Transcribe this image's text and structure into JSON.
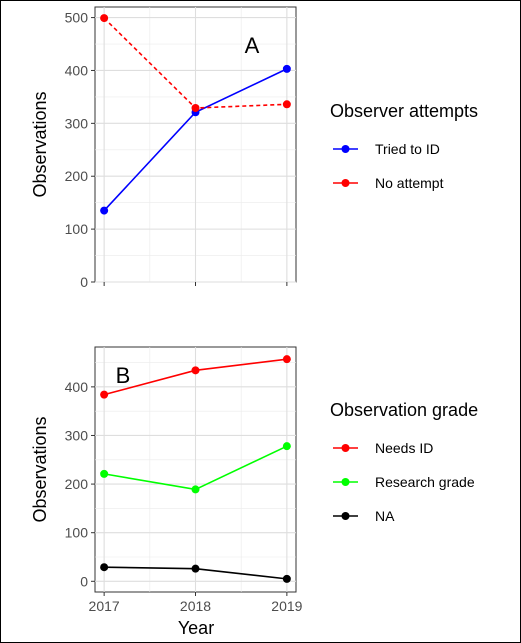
{
  "chart_data": [
    {
      "type": "line",
      "panel_label": "A",
      "x": [
        2017,
        2018,
        2019
      ],
      "ylabel": "Observations",
      "xlabel": "",
      "ylim": [
        0,
        520
      ],
      "yticks": [
        0,
        100,
        200,
        300,
        400,
        500
      ],
      "grid": true,
      "legend": {
        "title": "Observer attempts",
        "position": "right"
      },
      "series": [
        {
          "name": "Tried to ID",
          "values": [
            135,
            321,
            403
          ],
          "color": "#0000ff",
          "linestyle": "solid"
        },
        {
          "name": "No attempt",
          "values": [
            499,
            329,
            336
          ],
          "color": "#ff0000",
          "linestyle": "dashed"
        }
      ]
    },
    {
      "type": "line",
      "panel_label": "B",
      "x": [
        2017,
        2018,
        2019
      ],
      "xticks": [
        "2017",
        "2018",
        "2019"
      ],
      "ylabel": "Observations",
      "xlabel": "Year",
      "ylim": [
        -22,
        482
      ],
      "yticks": [
        0,
        100,
        200,
        300,
        400
      ],
      "grid": true,
      "legend": {
        "title": "Observation grade",
        "position": "right"
      },
      "series": [
        {
          "name": "Needs ID",
          "values": [
            384,
            434,
            457
          ],
          "color": "#ff0000",
          "linestyle": "solid"
        },
        {
          "name": "Research grade",
          "values": [
            221,
            189,
            278
          ],
          "color": "#00ff00",
          "linestyle": "solid"
        },
        {
          "name": "NA",
          "values": [
            29,
            26,
            5
          ],
          "color": "#000000",
          "linestyle": "solid"
        }
      ]
    }
  ]
}
